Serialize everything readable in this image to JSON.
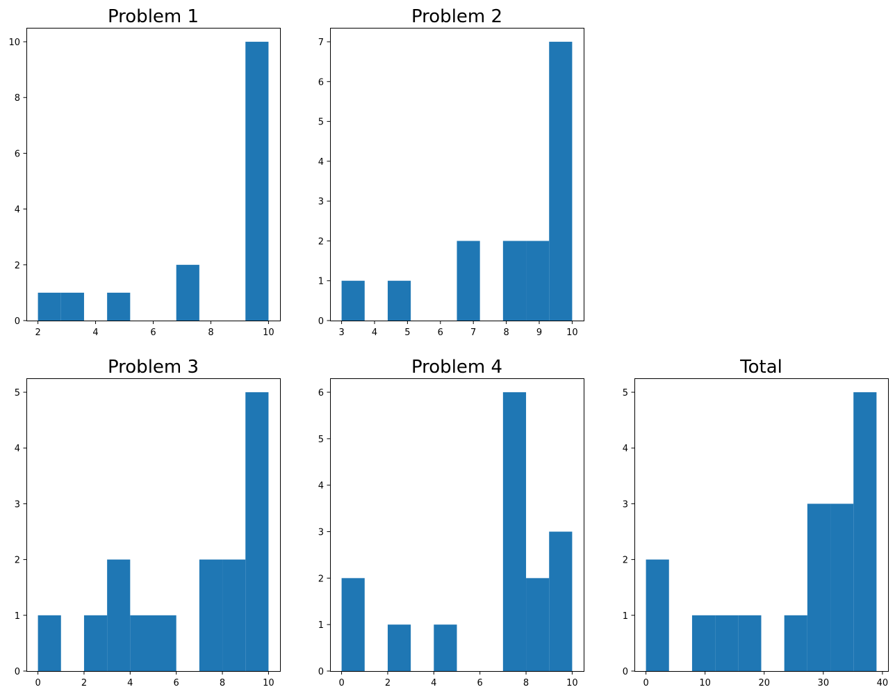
{
  "chart_data": [
    {
      "type": "bar",
      "title": "Problem 1",
      "bins": [
        2.0,
        2.8,
        3.6,
        4.4,
        5.2,
        6.0,
        6.8,
        7.6,
        8.4,
        9.2,
        10.0
      ],
      "counts": [
        1,
        1,
        0,
        1,
        0,
        0,
        2,
        0,
        0,
        10
      ],
      "xlim": [
        1.6,
        10.4
      ],
      "ylim": [
        0,
        10.5
      ],
      "xticks": [
        2,
        4,
        6,
        8,
        10
      ],
      "yticks": [
        0,
        2,
        4,
        6,
        8,
        10
      ]
    },
    {
      "type": "bar",
      "title": "Problem 2",
      "bins": [
        3.0,
        3.7,
        4.4,
        5.1,
        5.8,
        6.5,
        7.2,
        7.9,
        8.6,
        9.3,
        10.0
      ],
      "counts": [
        1,
        0,
        1,
        0,
        0,
        2,
        0,
        2,
        2,
        7
      ],
      "xlim": [
        2.65,
        10.35
      ],
      "ylim": [
        0,
        7.35
      ],
      "xticks": [
        3,
        4,
        5,
        6,
        7,
        8,
        9,
        10
      ],
      "yticks": [
        0,
        1,
        2,
        3,
        4,
        5,
        6,
        7
      ]
    },
    {
      "type": "bar",
      "title": "Problem 3",
      "bins": [
        0,
        1,
        2,
        3,
        4,
        5,
        6,
        7,
        8,
        9,
        10
      ],
      "counts": [
        1,
        0,
        1,
        2,
        1,
        1,
        0,
        2,
        2,
        5
      ],
      "xlim": [
        -0.5,
        10.5
      ],
      "ylim": [
        0,
        5.25
      ],
      "xticks": [
        0,
        2,
        4,
        6,
        8,
        10
      ],
      "yticks": [
        0,
        1,
        2,
        3,
        4,
        5
      ]
    },
    {
      "type": "bar",
      "title": "Problem 4",
      "bins": [
        0,
        1,
        2,
        3,
        4,
        5,
        6,
        7,
        8,
        9,
        10
      ],
      "counts": [
        2,
        0,
        1,
        0,
        1,
        0,
        0,
        6,
        2,
        3
      ],
      "xlim": [
        -0.5,
        10.5
      ],
      "ylim": [
        0,
        6.3
      ],
      "xticks": [
        0,
        2,
        4,
        6,
        8,
        10
      ],
      "yticks": [
        0,
        1,
        2,
        3,
        4,
        5,
        6
      ]
    },
    {
      "type": "bar",
      "title": "Total",
      "bins": [
        0,
        3.9,
        7.8,
        11.7,
        15.6,
        19.5,
        23.4,
        27.3,
        31.2,
        35.1,
        39.0
      ],
      "counts": [
        2,
        0,
        1,
        1,
        1,
        0,
        1,
        3,
        3,
        5
      ],
      "xlim": [
        -1.95,
        40.95
      ],
      "ylim": [
        0,
        5.25
      ],
      "xticks": [
        0,
        10,
        20,
        30,
        40
      ],
      "yticks": [
        0,
        1,
        2,
        3,
        4,
        5
      ]
    }
  ]
}
